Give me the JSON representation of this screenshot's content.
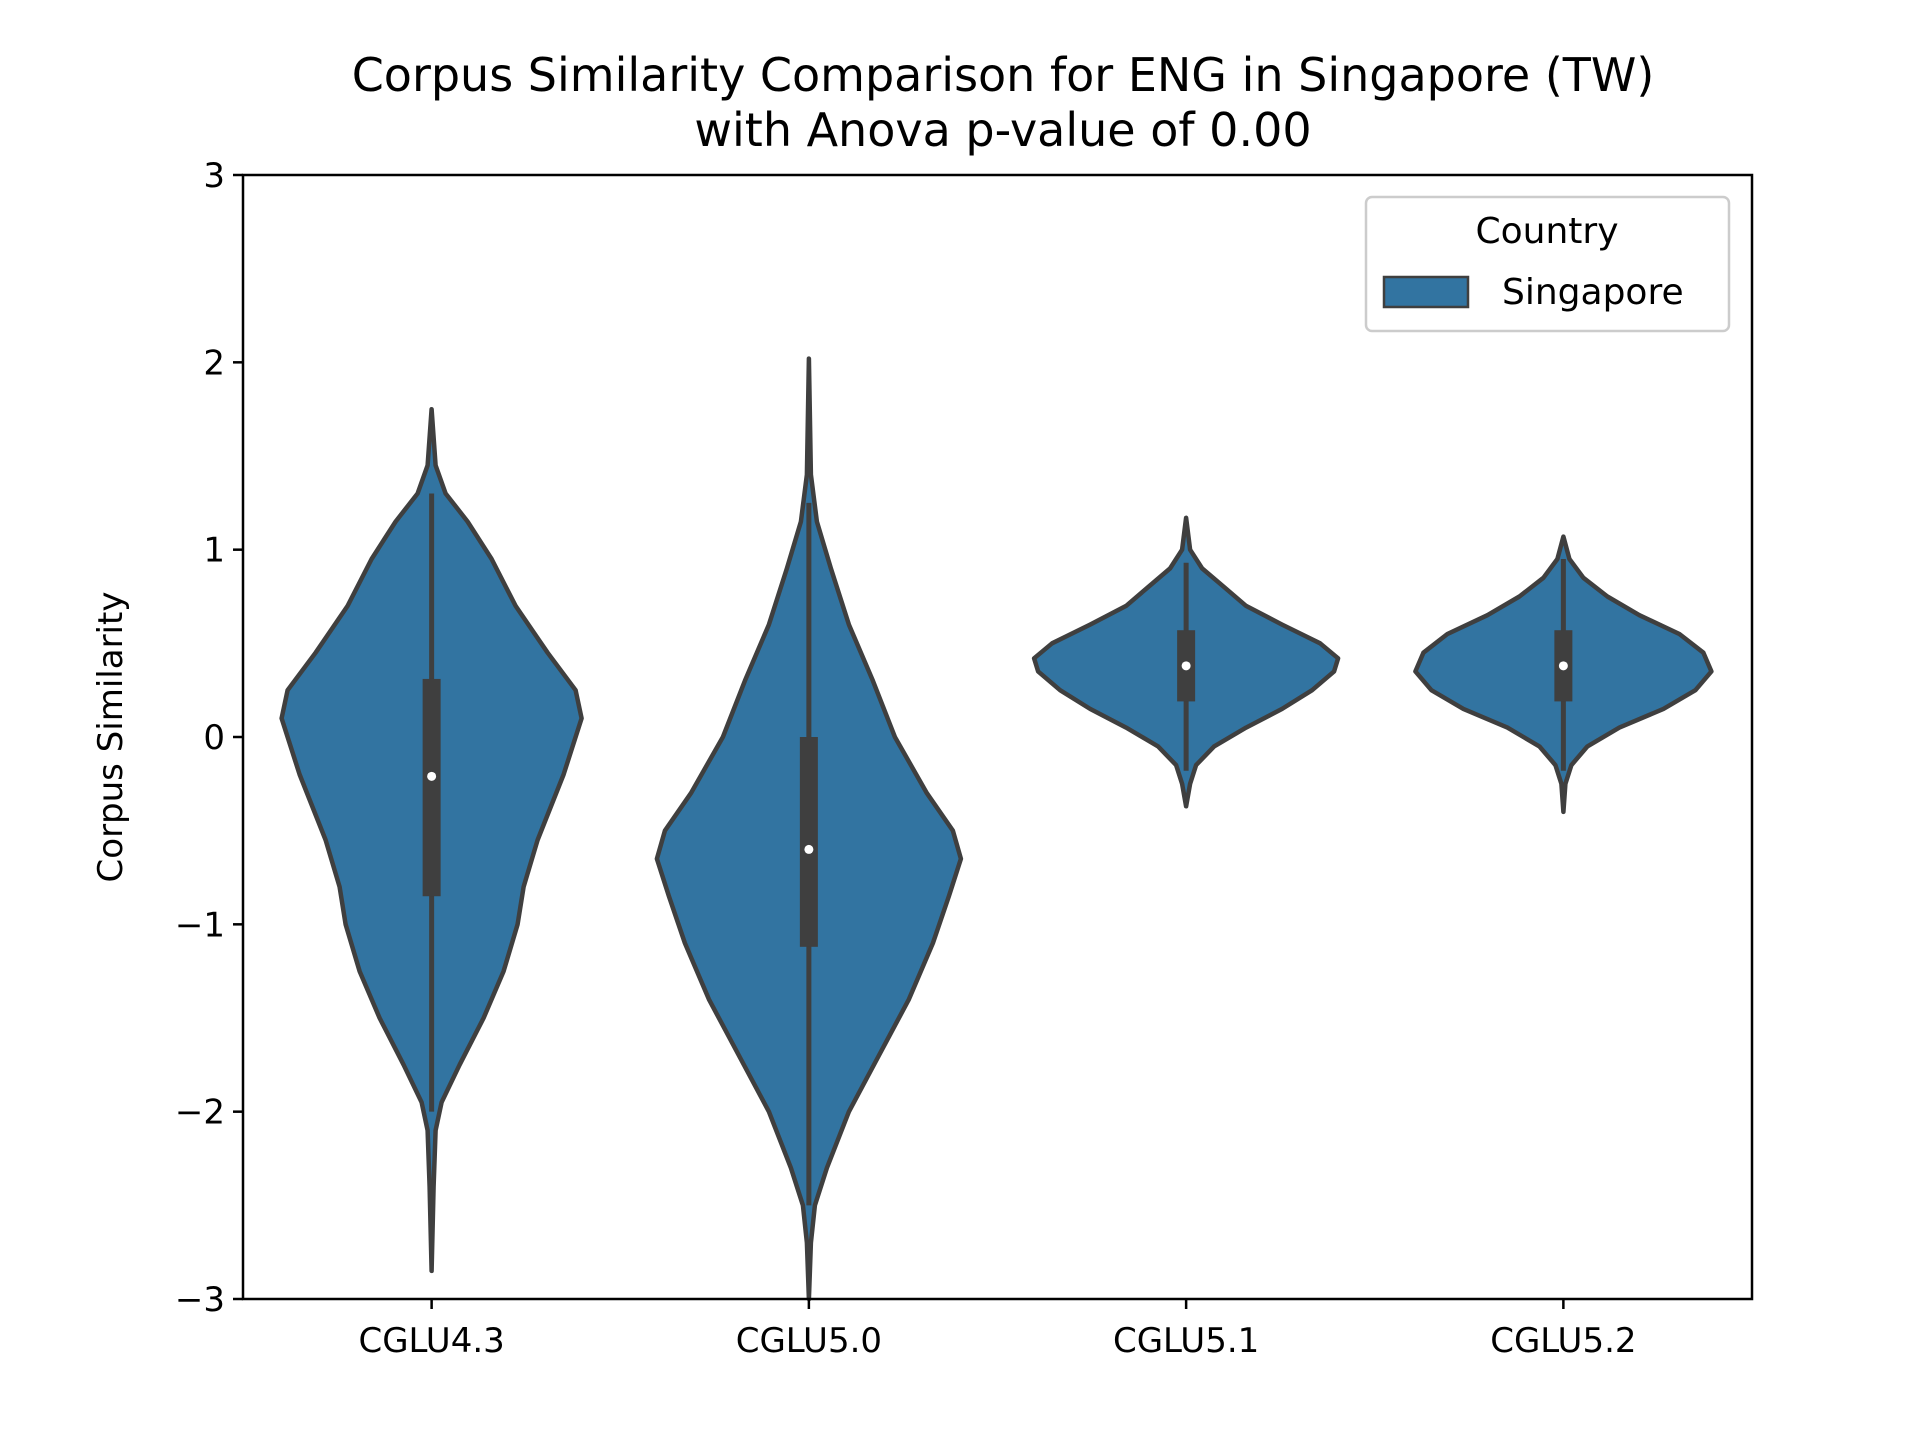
{
  "chart_data": {
    "type": "violin",
    "title_line1": "Corpus Similarity Comparison for ENG in Singapore (TW)",
    "title_line2": "with Anova p-value of 0.00",
    "xlabel": "",
    "ylabel": "Corpus Similarity",
    "ylim": [
      -3,
      3
    ],
    "yticks": [
      {
        "value": 3,
        "label": "3"
      },
      {
        "value": 2,
        "label": "2"
      },
      {
        "value": 1,
        "label": "1"
      },
      {
        "value": 0,
        "label": "0"
      },
      {
        "value": -1,
        "label": "−1"
      },
      {
        "value": -2,
        "label": "−2"
      },
      {
        "value": -3,
        "label": "−3"
      }
    ],
    "categories": [
      "CGLU4.3",
      "CGLU5.0",
      "CGLU5.1",
      "CGLU5.2"
    ],
    "grid": false,
    "legend": {
      "title": "Country",
      "placement": "top-right",
      "entries": [
        {
          "name": "Singapore",
          "color": "#3274a1"
        }
      ]
    },
    "colors": {
      "violin_fill": "#3274a1",
      "violin_edge": "#3f3f3f",
      "box": "#3f3f3f",
      "median": "#ffffff"
    },
    "series": [
      {
        "name": "Singapore",
        "violins": [
          {
            "category": "CGLU4.3",
            "min": -2.85,
            "q1": -0.85,
            "median": -0.21,
            "q3": 0.31,
            "max": 1.75,
            "whisker_low": -2.0,
            "whisker_high": 1.3,
            "profile": [
              [
                -2.85,
                0.0
              ],
              [
                -2.4,
                0.01
              ],
              [
                -2.1,
                0.02
              ],
              [
                -1.95,
                0.05
              ],
              [
                -1.75,
                0.14
              ],
              [
                -1.5,
                0.26
              ],
              [
                -1.25,
                0.36
              ],
              [
                -1.0,
                0.43
              ],
              [
                -0.8,
                0.46
              ],
              [
                -0.55,
                0.53
              ],
              [
                -0.2,
                0.66
              ],
              [
                0.1,
                0.75
              ],
              [
                0.25,
                0.72
              ],
              [
                0.45,
                0.58
              ],
              [
                0.7,
                0.42
              ],
              [
                0.95,
                0.3
              ],
              [
                1.15,
                0.18
              ],
              [
                1.3,
                0.07
              ],
              [
                1.45,
                0.02
              ],
              [
                1.75,
                0.0
              ]
            ]
          },
          {
            "category": "CGLU5.0",
            "min": -3.0,
            "q1": -1.12,
            "median": -0.6,
            "q3": 0.0,
            "max": 2.02,
            "whisker_low": -2.5,
            "whisker_high": 1.25,
            "profile": [
              [
                -3.0,
                0.0
              ],
              [
                -2.7,
                0.01
              ],
              [
                -2.5,
                0.03
              ],
              [
                -2.3,
                0.09
              ],
              [
                -2.0,
                0.2
              ],
              [
                -1.7,
                0.35
              ],
              [
                -1.4,
                0.5
              ],
              [
                -1.1,
                0.62
              ],
              [
                -0.85,
                0.7
              ],
              [
                -0.65,
                0.76
              ],
              [
                -0.5,
                0.72
              ],
              [
                -0.3,
                0.59
              ],
              [
                0.0,
                0.43
              ],
              [
                0.3,
                0.32
              ],
              [
                0.6,
                0.2
              ],
              [
                0.9,
                0.11
              ],
              [
                1.15,
                0.04
              ],
              [
                1.4,
                0.01
              ],
              [
                2.02,
                0.0
              ]
            ]
          },
          {
            "category": "CGLU5.1",
            "min": -0.37,
            "q1": 0.19,
            "median": 0.38,
            "q3": 0.57,
            "max": 1.17,
            "whisker_low": -0.18,
            "whisker_high": 0.93,
            "profile": [
              [
                -0.37,
                0.0
              ],
              [
                -0.25,
                0.02
              ],
              [
                -0.15,
                0.05
              ],
              [
                -0.05,
                0.14
              ],
              [
                0.05,
                0.3
              ],
              [
                0.15,
                0.48
              ],
              [
                0.25,
                0.63
              ],
              [
                0.35,
                0.74
              ],
              [
                0.42,
                0.76
              ],
              [
                0.5,
                0.67
              ],
              [
                0.6,
                0.48
              ],
              [
                0.7,
                0.3
              ],
              [
                0.8,
                0.19
              ],
              [
                0.9,
                0.08
              ],
              [
                1.0,
                0.02
              ],
              [
                1.17,
                0.0
              ]
            ]
          },
          {
            "category": "CGLU5.2",
            "min": -0.4,
            "q1": 0.19,
            "median": 0.38,
            "q3": 0.57,
            "max": 1.07,
            "whisker_low": -0.18,
            "whisker_high": 0.95,
            "profile": [
              [
                -0.4,
                0.0
              ],
              [
                -0.25,
                0.01
              ],
              [
                -0.15,
                0.04
              ],
              [
                -0.05,
                0.12
              ],
              [
                0.05,
                0.28
              ],
              [
                0.15,
                0.5
              ],
              [
                0.25,
                0.66
              ],
              [
                0.35,
                0.74
              ],
              [
                0.45,
                0.7
              ],
              [
                0.55,
                0.58
              ],
              [
                0.65,
                0.38
              ],
              [
                0.75,
                0.22
              ],
              [
                0.85,
                0.1
              ],
              [
                0.95,
                0.03
              ],
              [
                1.07,
                0.0
              ]
            ]
          }
        ]
      }
    ]
  }
}
